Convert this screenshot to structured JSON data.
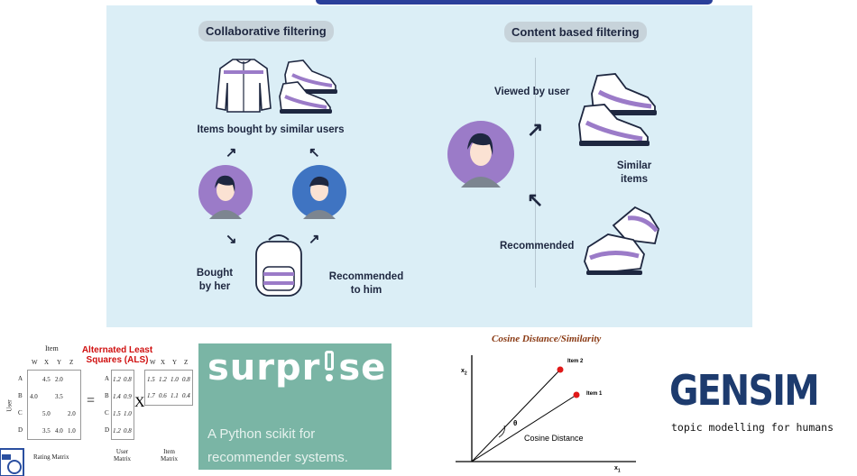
{
  "collab": {
    "heading": "Collaborative filtering",
    "items_label": "Items bought by similar users",
    "bought_label_1": "Bought",
    "bought_label_2": "by her",
    "recommended_label_1": "Recommended",
    "recommended_label_2": "to him"
  },
  "content": {
    "heading": "Content based filtering",
    "viewed_label": "Viewed by user",
    "similar_label_1": "Similar",
    "similar_label_2": "items",
    "recommended_label": "Recommended"
  },
  "als": {
    "title_1": "Alternated Least",
    "title_2": "Squares (ALS)",
    "item_label": "Item",
    "user_label": "User",
    "cols": [
      "W",
      "X",
      "Y",
      "Z"
    ],
    "rows": [
      "A",
      "B",
      "C",
      "D"
    ],
    "rating": [
      [
        "",
        "4.5",
        "2.0",
        ""
      ],
      [
        "4.0",
        "",
        "3.5",
        ""
      ],
      [
        "",
        "5.0",
        "",
        "2.0"
      ],
      [
        "",
        "3.5",
        "4.0",
        "1.0"
      ]
    ],
    "user_matrix": [
      [
        "1.2",
        "0.8"
      ],
      [
        "1.4",
        "0.9"
      ],
      [
        "1.5",
        "1.0"
      ],
      [
        "1.2",
        "0.8"
      ]
    ],
    "item_matrix": [
      [
        "1.5",
        "1.2",
        "1.0",
        "0.8"
      ],
      [
        "1.7",
        "0.6",
        "1.1",
        "0.4"
      ]
    ],
    "equals": "=",
    "times": "X",
    "rating_caption": "Rating Matrix",
    "user_caption_1": "User",
    "user_caption_2": "Matrix",
    "item_caption_1": "Item",
    "item_caption_2": "Matrix"
  },
  "surprise": {
    "logo_a": "surpr",
    "logo_b": "se",
    "tagline_1": "A Python scikit for",
    "tagline_2": "recommender systems.",
    "bg_color": "#7ab5a5"
  },
  "cosine": {
    "title": "Cosine Distance/Similarity",
    "item2": "Item 2",
    "item1": "Item 1",
    "theta": "θ",
    "distance_label": "Cosine Distance",
    "x_axis": "x",
    "x_sub": "1",
    "y_axis": "x",
    "y_sub": "2"
  },
  "gensim": {
    "logo": "GENSIM",
    "tagline": "topic modelling for humans",
    "color": "#1d3b6e"
  }
}
